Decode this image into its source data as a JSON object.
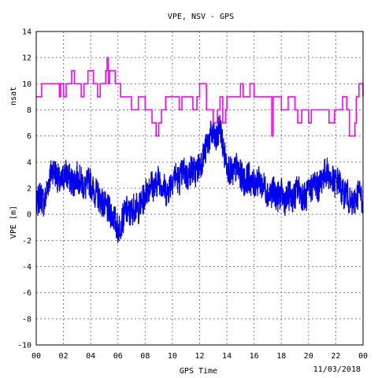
{
  "chart_data": {
    "type": "line",
    "title": "VPE, NSV - GPS",
    "xlabel": "GPS Time",
    "date_label": "11/03/2018",
    "ylabel_left": "VPE [m]",
    "ylabel_top": "nsat",
    "xlim": [
      0,
      24
    ],
    "ylim": [
      -10,
      14
    ],
    "x_ticks": [
      "00",
      "02",
      "04",
      "06",
      "08",
      "10",
      "12",
      "14",
      "16",
      "18",
      "20",
      "22",
      "00"
    ],
    "y_ticks": [
      "14",
      "12",
      "10",
      "8",
      "6",
      "4",
      "2",
      "0",
      "-2",
      "-4",
      "-6",
      "-8",
      "-10"
    ],
    "grid": true,
    "colors": {
      "vpe": "#0000ee",
      "nsat": "#ff00ff"
    },
    "series": [
      {
        "name": "nsat",
        "step": true,
        "x": [
          0,
          0.4,
          1.7,
          1.8,
          2.0,
          2.2,
          2.6,
          2.8,
          3.3,
          3.5,
          3.8,
          4.2,
          4.5,
          4.7,
          5.1,
          5.2,
          5.3,
          5.4,
          5.8,
          6.2,
          7.0,
          7.5,
          8.0,
          8.5,
          8.8,
          9.0,
          9.2,
          9.5,
          10.5,
          10.7,
          11.5,
          11.8,
          12.0,
          12.5,
          13.0,
          13.3,
          13.5,
          13.7,
          13.9,
          14.0,
          15.0,
          15.2,
          15.7,
          16.0,
          16.5,
          17.3,
          17.4,
          18.0,
          18.5,
          19.0,
          19.2,
          19.5,
          20.0,
          20.2,
          20.5,
          21.0,
          21.5,
          21.9,
          22.0,
          22.5,
          22.8,
          23.0,
          23.4,
          23.5,
          23.7,
          24
        ],
        "y": [
          9,
          10,
          9,
          10,
          9,
          10,
          11,
          10,
          9,
          10,
          11,
          10,
          9,
          10,
          11,
          12,
          10,
          11,
          10,
          9,
          8,
          9,
          8,
          7,
          6,
          7,
          8,
          9,
          8,
          9,
          8,
          9,
          10,
          8,
          7,
          8,
          9,
          7,
          8,
          9,
          10,
          9,
          10,
          9,
          9,
          6,
          9,
          8,
          9,
          8,
          7,
          8,
          7,
          8,
          8,
          8,
          7,
          8,
          8,
          9,
          8,
          6,
          7,
          9,
          10,
          9
        ]
      },
      {
        "name": "VPE",
        "x": [
          0,
          0.3,
          0.6,
          0.9,
          1.2,
          1.5,
          1.8,
          2.1,
          2.4,
          2.7,
          3.0,
          3.3,
          3.6,
          3.9,
          4.2,
          4.5,
          4.8,
          5.1,
          5.4,
          5.7,
          6.0,
          6.3,
          6.6,
          6.9,
          7.2,
          7.5,
          7.8,
          8.1,
          8.4,
          8.7,
          9.0,
          9.3,
          9.6,
          9.9,
          10.2,
          10.5,
          10.8,
          11.1,
          11.4,
          11.7,
          12.0,
          12.3,
          12.6,
          12.9,
          13.2,
          13.5,
          13.8,
          14.1,
          14.4,
          14.7,
          15.0,
          15.3,
          15.6,
          15.9,
          16.2,
          16.5,
          16.8,
          17.1,
          17.4,
          17.7,
          18.0,
          18.3,
          18.6,
          18.9,
          19.2,
          19.5,
          19.8,
          20.1,
          20.4,
          20.7,
          21.0,
          21.3,
          21.6,
          21.9,
          22.2,
          22.5,
          22.8,
          23.1,
          23.4,
          23.7,
          24.0
        ],
        "y": [
          0.5,
          1.5,
          0.8,
          2.5,
          3.5,
          3.0,
          2.2,
          3.2,
          2.8,
          2.4,
          2.9,
          2.5,
          2.0,
          2.6,
          1.8,
          1.5,
          1.0,
          0.5,
          0.2,
          -0.2,
          -1.2,
          -0.5,
          0.3,
          0.0,
          0.6,
          0.4,
          1.0,
          1.8,
          2.4,
          2.0,
          2.8,
          2.2,
          1.6,
          2.5,
          3.0,
          2.6,
          3.4,
          2.8,
          3.5,
          3.2,
          3.8,
          4.5,
          5.5,
          6.2,
          5.6,
          6.8,
          4.6,
          3.6,
          3.0,
          3.6,
          3.0,
          2.5,
          2.9,
          2.2,
          2.6,
          2.4,
          2.0,
          1.5,
          1.8,
          1.3,
          1.6,
          1.0,
          1.5,
          1.2,
          2.0,
          1.5,
          1.3,
          1.8,
          2.5,
          2.0,
          2.8,
          3.3,
          2.8,
          2.4,
          2.6,
          1.5,
          1.8,
          0.6,
          1.0,
          1.8,
          1.0
        ]
      }
    ]
  }
}
